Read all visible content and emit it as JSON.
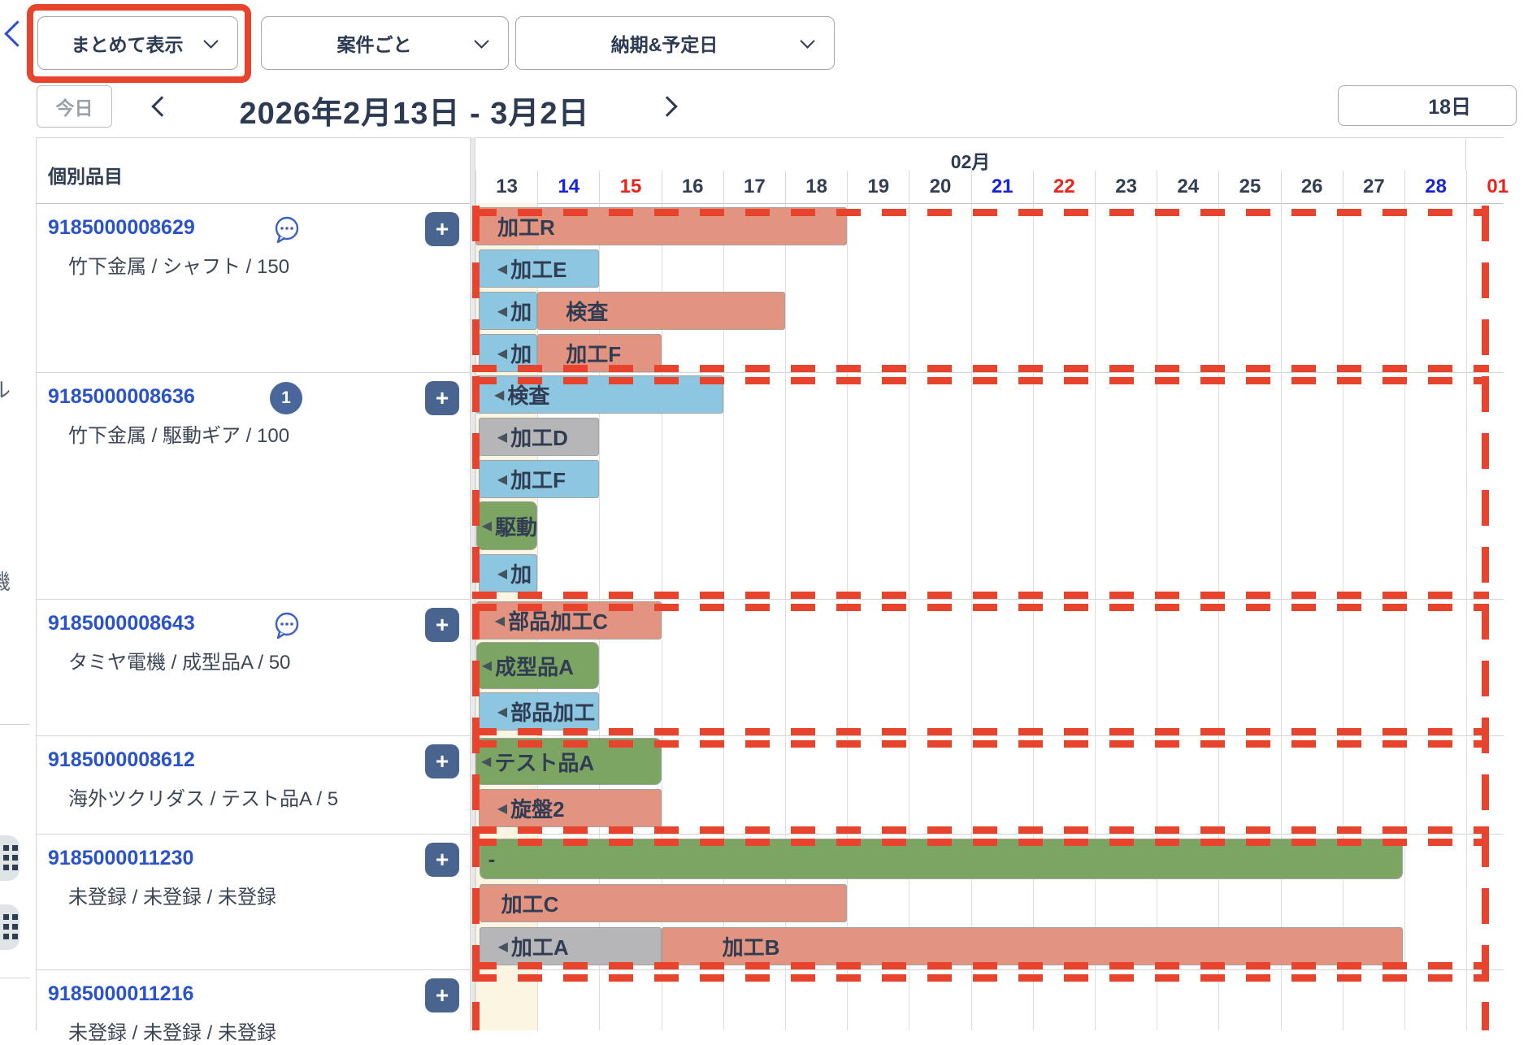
{
  "toolbar": {
    "back_icon": "chevron-left",
    "dropdowns": [
      {
        "label": "まとめて表示",
        "highlighted": true
      },
      {
        "label": "案件ごと"
      },
      {
        "label": "納期&予定日"
      }
    ]
  },
  "date_nav": {
    "today": "今日",
    "title": "2026年2月13日 - 3月2日",
    "range_length": "18日"
  },
  "left_panel": {
    "header": "個別品目",
    "add_label": "+",
    "rows": [
      {
        "id": "9185000008629",
        "icon": "chat",
        "subtitle": "竹下金属 / シャフト / 150"
      },
      {
        "id": "9185000008636",
        "badge": "1",
        "subtitle": "竹下金属 / 駆動ギア / 100"
      },
      {
        "id": "9185000008643",
        "icon": "chat",
        "subtitle": "タミヤ電機 / 成型品A / 50"
      },
      {
        "id": "9185000008612",
        "subtitle": "海外ツクリダス / テスト品A / 5"
      },
      {
        "id": "9185000011230",
        "subtitle": "未登録 / 未登録 / 未登録"
      },
      {
        "id": "9185000011216",
        "subtitle": "未登録 / 未登録 / 未登録"
      }
    ]
  },
  "calendar": {
    "month": "02月",
    "days": [
      {
        "n": "13",
        "t": "wd"
      },
      {
        "n": "14",
        "t": "sat"
      },
      {
        "n": "15",
        "t": "sun"
      },
      {
        "n": "16",
        "t": "wd"
      },
      {
        "n": "17",
        "t": "wd"
      },
      {
        "n": "18",
        "t": "wd"
      },
      {
        "n": "19",
        "t": "wd"
      },
      {
        "n": "20",
        "t": "wd"
      },
      {
        "n": "21",
        "t": "sat"
      },
      {
        "n": "22",
        "t": "sun"
      },
      {
        "n": "23",
        "t": "wd"
      },
      {
        "n": "24",
        "t": "wd"
      },
      {
        "n": "25",
        "t": "wd"
      },
      {
        "n": "26",
        "t": "wd"
      },
      {
        "n": "27",
        "t": "wd"
      },
      {
        "n": "28",
        "t": "sat"
      },
      {
        "n": "01",
        "t": "sun"
      }
    ]
  },
  "chart_data": {
    "type": "gantt",
    "title": "2026年2月13日 - 3月2日",
    "x_axis_days": [
      "13",
      "14",
      "15",
      "16",
      "17",
      "18",
      "19",
      "20",
      "21",
      "22",
      "23",
      "24",
      "25",
      "26",
      "27",
      "28",
      "01"
    ],
    "bars": [
      {
        "row": 0,
        "slot": 0,
        "segs": [
          {
            "label": "加工R",
            "color": "salmon",
            "start": 0,
            "end": 6,
            "pad": 26
          }
        ]
      },
      {
        "row": 0,
        "slot": 1,
        "segs": [
          {
            "label": "加工E",
            "color": "blue",
            "start": 0.05,
            "end": 2,
            "arrow": true
          }
        ]
      },
      {
        "row": 0,
        "slot": 2,
        "segs": [
          {
            "label": "加",
            "color": "blue",
            "start": 0.05,
            "end": 1,
            "arrow": true
          },
          {
            "label": "検査",
            "color": "salmon",
            "start": 1,
            "end": 5,
            "pad": 34
          }
        ]
      },
      {
        "row": 0,
        "slot": 3,
        "segs": [
          {
            "label": "加",
            "color": "blue",
            "start": 0.05,
            "end": 1,
            "arrow": true
          },
          {
            "label": "加工F",
            "color": "salmon",
            "start": 1,
            "end": 3,
            "pad": 34
          }
        ]
      },
      {
        "row": 1,
        "slot": 0,
        "segs": [
          {
            "label": "検査",
            "color": "blue",
            "start": 0,
            "end": 4,
            "arrow": true
          }
        ]
      },
      {
        "row": 1,
        "slot": 1,
        "segs": [
          {
            "label": "加工D",
            "color": "gray",
            "start": 0.05,
            "end": 2,
            "arrow": true
          }
        ]
      },
      {
        "row": 1,
        "slot": 2,
        "segs": [
          {
            "label": "加工F",
            "color": "blue",
            "start": 0.05,
            "end": 2,
            "arrow": true
          }
        ]
      },
      {
        "row": 1,
        "slot": 3,
        "segs": [
          {
            "label": "駆動",
            "color": "green",
            "start": 0.01,
            "end": 1,
            "arrow": true,
            "h": 60
          }
        ]
      },
      {
        "row": 1,
        "slot": 4,
        "segs": [
          {
            "label": "加",
            "color": "blue",
            "start": 0.05,
            "end": 1,
            "arrow": true
          }
        ]
      },
      {
        "row": 2,
        "slot": 0,
        "segs": [
          {
            "label": "部品加工C",
            "color": "salmon",
            "start": 0.01,
            "end": 3,
            "arrow": true
          }
        ]
      },
      {
        "row": 2,
        "slot": 1,
        "segs": [
          {
            "label": "成型品A",
            "color": "green",
            "start": 0.01,
            "end": 2,
            "arrow": true,
            "h": 58
          }
        ]
      },
      {
        "row": 2,
        "slot": 2,
        "segs": [
          {
            "label": "部品加工",
            "color": "blue",
            "start": 0.05,
            "end": 2,
            "arrow": true
          }
        ]
      },
      {
        "row": 3,
        "slot": 0,
        "segs": [
          {
            "label": "テスト品A",
            "color": "green",
            "start": 0,
            "end": 3,
            "arrow": true,
            "h": 58
          }
        ]
      },
      {
        "row": 3,
        "slot": 1,
        "segs": [
          {
            "label": "旋盤2",
            "color": "salmon",
            "start": 0.05,
            "end": 3,
            "arrow": true
          }
        ]
      },
      {
        "row": 4,
        "slot": 0,
        "segs": [
          {
            "label": "-",
            "color": "green",
            "start": 0.06,
            "end": 14.97,
            "h": 50,
            "pad": 10
          }
        ]
      },
      {
        "row": 4,
        "slot": 1,
        "segs": [
          {
            "label": "加工C",
            "color": "salmon",
            "start": 0.06,
            "end": 6,
            "pad": 26
          }
        ]
      },
      {
        "row": 4,
        "slot": 2,
        "segs": [
          {
            "label": "加工A",
            "color": "gray",
            "start": 0.06,
            "end": 3,
            "arrow": true
          },
          {
            "label": "加工B",
            "color": "salmon",
            "start": 3,
            "end": 14.97,
            "pad": 74
          }
        ]
      }
    ]
  },
  "colors": {
    "salmon": "#e39481",
    "blue": "#8dc6e0",
    "gray": "#b6b6b8",
    "green": "#7ca463",
    "annotation_red": "#e8432c",
    "link_blue": "#2a52cb",
    "saturday_blue": "#1625d8",
    "sunday_red": "#e8251c",
    "weekday_dark": "#333e52",
    "add_button_bg": "#49648f",
    "day13_cream": "#fcf5e1"
  }
}
